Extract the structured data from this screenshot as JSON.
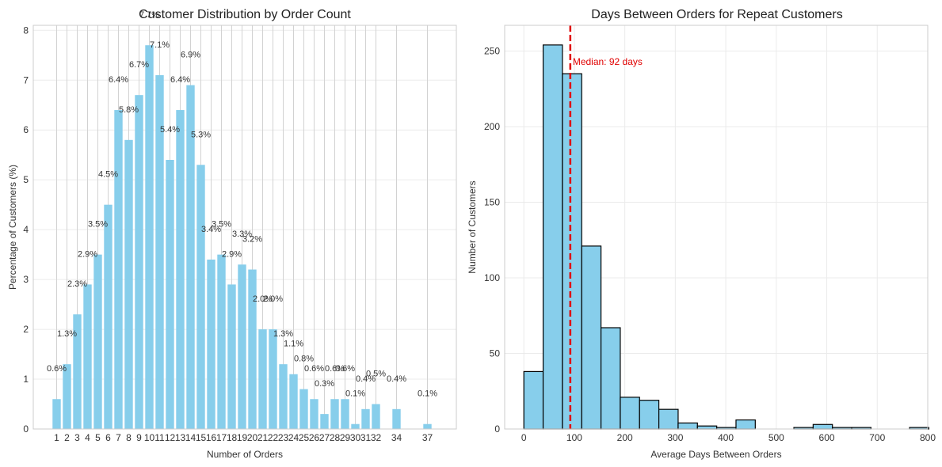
{
  "chart_data": [
    {
      "type": "bar",
      "title": "Customer Distribution by Order Count",
      "xlabel": "Number of Orders",
      "ylabel": "Percentage of Customers (%)",
      "ylim": [
        0,
        8.1
      ],
      "yticks": [
        0,
        1,
        2,
        3,
        4,
        5,
        6,
        7,
        8
      ],
      "grid": true,
      "color": "#87ceeb",
      "categories": [
        1,
        2,
        3,
        4,
        5,
        6,
        7,
        8,
        9,
        10,
        11,
        12,
        13,
        14,
        15,
        16,
        17,
        18,
        19,
        20,
        21,
        22,
        23,
        24,
        25,
        26,
        27,
        28,
        29,
        30,
        31,
        32,
        34,
        37
      ],
      "values": [
        0.6,
        1.3,
        2.3,
        2.9,
        3.5,
        4.5,
        6.4,
        5.8,
        6.7,
        7.7,
        7.1,
        5.4,
        6.4,
        6.9,
        5.3,
        3.4,
        3.5,
        2.9,
        3.3,
        3.2,
        2.0,
        2.0,
        1.3,
        1.1,
        0.8,
        0.6,
        0.3,
        0.6,
        0.6,
        0.1,
        0.4,
        0.5,
        0.4,
        0.1
      ],
      "labels": [
        "0.6%",
        "1.3%",
        "2.3%",
        "2.9%",
        "3.5%",
        "4.5%",
        "6.4%",
        "5.8%",
        "6.7%",
        "7.7%",
        "7.1%",
        "5.4%",
        "6.4%",
        "6.9%",
        "5.3%",
        "3.4%",
        "3.5%",
        "2.9%",
        "3.3%",
        "3.2%",
        "2.0%",
        "2.0%",
        "1.3%",
        "1.1%",
        "0.8%",
        "0.6%",
        "0.3%",
        "0.6%",
        "0.6%",
        "0.1%",
        "0.4%",
        "0.5%",
        "0.4%",
        "0.1%"
      ]
    },
    {
      "type": "histogram",
      "title": "Days Between Orders for Repeat Customers",
      "xlabel": "Average Days Between Orders",
      "ylabel": "Number of Customers",
      "xlim": [
        -38,
        800
      ],
      "ylim": [
        0,
        267
      ],
      "xticks": [
        0,
        100,
        200,
        300,
        400,
        500,
        600,
        700,
        800
      ],
      "yticks": [
        0,
        50,
        100,
        150,
        200,
        250
      ],
      "grid": true,
      "color": "#87ceeb",
      "bin_start": 0,
      "bin_width": 38.2,
      "counts": [
        38,
        254,
        235,
        121,
        67,
        21,
        19,
        13,
        4,
        2,
        1,
        6,
        0,
        0,
        1,
        3,
        1,
        1,
        0,
        0,
        1
      ],
      "median_line": {
        "value": 92,
        "color": "#e00000",
        "label": "Median: 92 days"
      }
    }
  ]
}
